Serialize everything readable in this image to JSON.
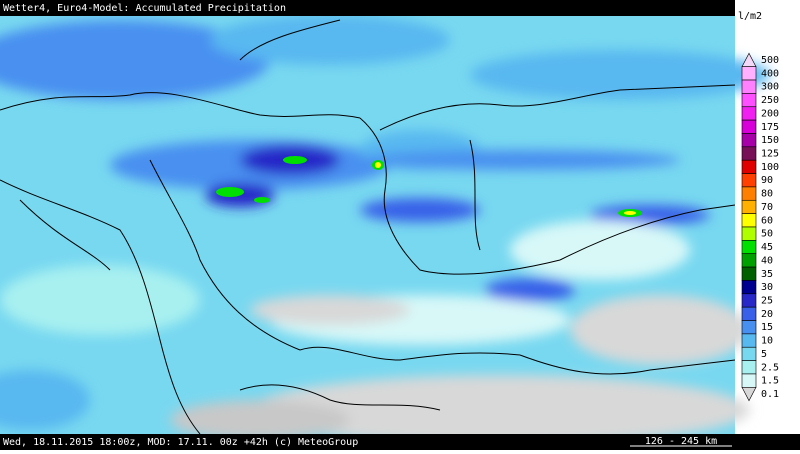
{
  "header": {
    "title": "Wetter4, Euro4-Model: Accumulated Precipitation"
  },
  "legend": {
    "unit": "l/m2",
    "items": [
      {
        "label": "500",
        "color": "#f4d8f8"
      },
      {
        "label": "400",
        "color": "#ffb0ff"
      },
      {
        "label": "300",
        "color": "#ff80ff"
      },
      {
        "label": "250",
        "color": "#ff50ff"
      },
      {
        "label": "200",
        "color": "#f020f0"
      },
      {
        "label": "175",
        "color": "#d800d8"
      },
      {
        "label": "150",
        "color": "#a800a8"
      },
      {
        "label": "125",
        "color": "#781058"
      },
      {
        "label": "100",
        "color": "#e00000"
      },
      {
        "label": "90",
        "color": "#ff4000"
      },
      {
        "label": "80",
        "color": "#ff8000"
      },
      {
        "label": "70",
        "color": "#ffb000"
      },
      {
        "label": "60",
        "color": "#ffff00"
      },
      {
        "label": "50",
        "color": "#b0ff00"
      },
      {
        "label": "45",
        "color": "#00e000"
      },
      {
        "label": "40",
        "color": "#00a000"
      },
      {
        "label": "35",
        "color": "#006000"
      },
      {
        "label": "30",
        "color": "#000090"
      },
      {
        "label": "25",
        "color": "#2828c8"
      },
      {
        "label": "20",
        "color": "#3860e8"
      },
      {
        "label": "15",
        "color": "#4890f0"
      },
      {
        "label": "10",
        "color": "#58b8f0"
      },
      {
        "label": "5",
        "color": "#78d8f0"
      },
      {
        "label": "2.5",
        "color": "#a8f0f0"
      },
      {
        "label": "1.5",
        "color": "#d8f8f8"
      },
      {
        "label": "0.1",
        "color": "#d8d8d8"
      }
    ]
  },
  "footer": {
    "info": "Wed, 18.11.2015 18:00z, MOD: 17.11. 00z +42h (c) MeteoGroup",
    "scale": "126 - 245 km"
  }
}
